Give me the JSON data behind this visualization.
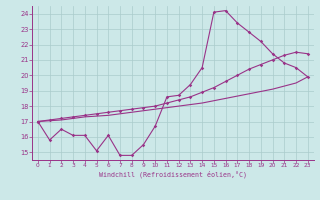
{
  "xlabel": "Windchill (Refroidissement éolien,°C)",
  "bg_color": "#cce8e8",
  "grid_color": "#aacccc",
  "line_color": "#993388",
  "xlim_min": -0.5,
  "xlim_max": 23.5,
  "ylim_min": 14.5,
  "ylim_max": 24.5,
  "xticks": [
    0,
    1,
    2,
    3,
    4,
    5,
    6,
    7,
    8,
    9,
    10,
    11,
    12,
    13,
    14,
    15,
    16,
    17,
    18,
    19,
    20,
    21,
    22,
    23
  ],
  "yticks": [
    15,
    16,
    17,
    18,
    19,
    20,
    21,
    22,
    23,
    24
  ],
  "hourly": [
    17.0,
    15.8,
    16.5,
    16.1,
    16.1,
    15.1,
    16.1,
    14.8,
    14.8,
    15.5,
    16.7,
    18.6,
    18.7,
    19.4,
    20.5,
    24.1,
    24.2,
    23.4,
    22.8,
    22.2,
    21.4,
    20.8,
    20.5,
    19.9
  ],
  "line2": [
    17.0,
    17.1,
    17.2,
    17.3,
    17.4,
    17.5,
    17.6,
    17.7,
    17.8,
    17.9,
    18.0,
    18.2,
    18.4,
    18.6,
    18.9,
    19.2,
    19.6,
    20.0,
    20.4,
    20.7,
    21.0,
    21.3,
    21.5,
    21.4
  ],
  "line3": [
    17.0,
    17.05,
    17.1,
    17.2,
    17.3,
    17.35,
    17.4,
    17.5,
    17.6,
    17.7,
    17.8,
    17.9,
    18.0,
    18.1,
    18.2,
    18.35,
    18.5,
    18.65,
    18.8,
    18.95,
    19.1,
    19.3,
    19.5,
    19.9
  ]
}
